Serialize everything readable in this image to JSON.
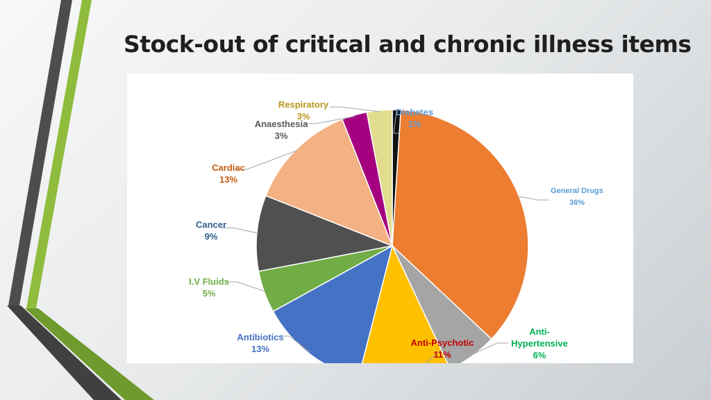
{
  "slide": {
    "title": "Stock-out of critical and chronic illness items"
  },
  "chart_data": {
    "type": "pie",
    "title": "",
    "slices": [
      {
        "label": "Diabetes",
        "value": 1,
        "value_label": "1%",
        "color": "#111111",
        "label_color": "#5b9bd5"
      },
      {
        "label": "General Drugs",
        "value": 36,
        "value_label": "36%",
        "color": "#ed7d31",
        "label_color": "#5b9bd5"
      },
      {
        "label": "Anti-Hypertensive",
        "value": 6,
        "value_label": "6%",
        "color": "#a5a5a5",
        "label_color": "#00b050"
      },
      {
        "label": "Anti-Psychotic",
        "value": 11,
        "value_label": "11%",
        "color": "#ffc000",
        "label_color": "#c00000"
      },
      {
        "label": "Antibiotics",
        "value": 13,
        "value_label": "13%",
        "color": "#4472c4",
        "label_color": "#4472c4"
      },
      {
        "label": "I.V Fluids",
        "value": 5,
        "value_label": "5%",
        "color": "#70ad47",
        "label_color": "#70ad47"
      },
      {
        "label": "Cancer",
        "value": 9,
        "value_label": "9%",
        "color": "#505050",
        "label_color": "#2e5d8a"
      },
      {
        "label": "Cardiac",
        "value": 13,
        "value_label": "13%",
        "color": "#f4b183",
        "label_color": "#c55a11"
      },
      {
        "label": "Anaesthesia",
        "value": 3,
        "value_label": "3%",
        "color": "#a50080",
        "label_color": "#595959"
      },
      {
        "label": "Respiratory",
        "value": 3,
        "value_label": "3%",
        "color": "#e2dc8e",
        "label_color": "#b8961e"
      }
    ],
    "legend": "none",
    "data_labels": "outside with leader lines"
  }
}
